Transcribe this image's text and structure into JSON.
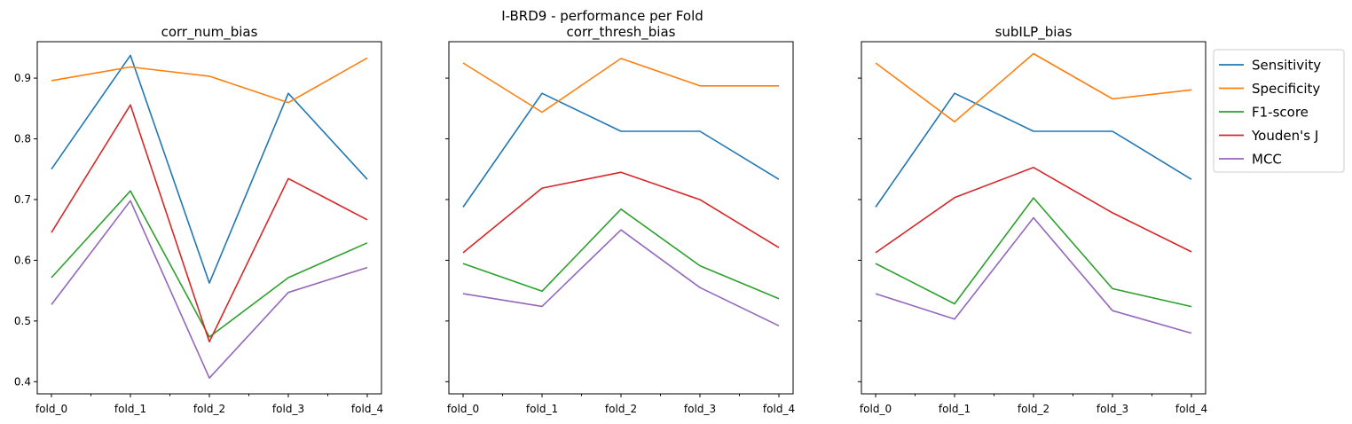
{
  "suptitle": "I-BRD9 - performance per Fold",
  "chart_data": [
    {
      "type": "line",
      "title": "corr_num_bias",
      "xlabel": "",
      "ylabel": "",
      "categories": [
        "fold_0",
        "fold_1",
        "fold_2",
        "fold_3",
        "fold_4"
      ],
      "ylim": [
        0.38,
        0.96
      ],
      "yticks": [
        "0.4",
        "0.5",
        "0.6",
        "0.7",
        "0.8",
        "0.9"
      ],
      "series": [
        {
          "name": "Sensitivity",
          "color": "#1f77b4",
          "values": [
            0.75,
            0.9375,
            0.5625,
            0.875,
            0.7333
          ]
        },
        {
          "name": "Specificity",
          "color": "#ff7f0e",
          "values": [
            0.8958,
            0.9184,
            0.9032,
            0.8596,
            0.9333
          ]
        },
        {
          "name": "F1-score",
          "color": "#2ca02c",
          "values": [
            0.5714,
            0.7143,
            0.4737,
            0.5714,
            0.6286
          ]
        },
        {
          "name": "Youden's J",
          "color": "#d62728",
          "values": [
            0.6458,
            0.8559,
            0.4657,
            0.7346,
            0.6667
          ]
        },
        {
          "name": "MCC",
          "color": "#9467bd",
          "values": [
            0.527,
            0.698,
            0.406,
            0.547,
            0.588
          ]
        }
      ]
    },
    {
      "type": "line",
      "title": "corr_thresh_bias",
      "xlabel": "",
      "ylabel": "",
      "categories": [
        "fold_0",
        "fold_1",
        "fold_2",
        "fold_3",
        "fold_4"
      ],
      "ylim": [
        0.38,
        0.96
      ],
      "yticks": [
        "0.4",
        "0.5",
        "0.6",
        "0.7",
        "0.8",
        "0.9"
      ],
      "series": [
        {
          "name": "Sensitivity",
          "color": "#1f77b4",
          "values": [
            0.6875,
            0.875,
            0.8125,
            0.8125,
            0.7333
          ]
        },
        {
          "name": "Specificity",
          "color": "#ff7f0e",
          "values": [
            0.925,
            0.8438,
            0.9324,
            0.8873,
            0.8873
          ]
        },
        {
          "name": "F1-score",
          "color": "#2ca02c",
          "values": [
            0.5946,
            0.549,
            0.6842,
            0.5909,
            0.5366
          ]
        },
        {
          "name": "Youden's J",
          "color": "#d62728",
          "values": [
            0.6125,
            0.7188,
            0.7449,
            0.6998,
            0.6207
          ]
        },
        {
          "name": "MCC",
          "color": "#9467bd",
          "values": [
            0.545,
            0.524,
            0.65,
            0.555,
            0.492
          ]
        }
      ]
    },
    {
      "type": "line",
      "title": "subILP_bias",
      "xlabel": "",
      "ylabel": "",
      "categories": [
        "fold_0",
        "fold_1",
        "fold_2",
        "fold_3",
        "fold_4"
      ],
      "ylim": [
        0.38,
        0.96
      ],
      "yticks": [
        "0.4",
        "0.5",
        "0.6",
        "0.7",
        "0.8",
        "0.9"
      ],
      "series": [
        {
          "name": "Sensitivity",
          "color": "#1f77b4",
          "values": [
            0.6875,
            0.875,
            0.8125,
            0.8125,
            0.7333
          ]
        },
        {
          "name": "Specificity",
          "color": "#ff7f0e",
          "values": [
            0.925,
            0.8281,
            0.9403,
            0.8657,
            0.8806
          ]
        },
        {
          "name": "F1-score",
          "color": "#2ca02c",
          "values": [
            0.5946,
            0.5283,
            0.7027,
            0.5532,
            0.5238
          ]
        },
        {
          "name": "Youden's J",
          "color": "#d62728",
          "values": [
            0.6125,
            0.7031,
            0.7528,
            0.6782,
            0.6139
          ]
        },
        {
          "name": "MCC",
          "color": "#9467bd",
          "values": [
            0.545,
            0.503,
            0.67,
            0.517,
            0.48
          ]
        }
      ]
    }
  ],
  "legend": {
    "placement": "outside-right",
    "entries": [
      "Sensitivity",
      "Specificity",
      "F1-score",
      "Youden's J",
      "MCC"
    ]
  }
}
